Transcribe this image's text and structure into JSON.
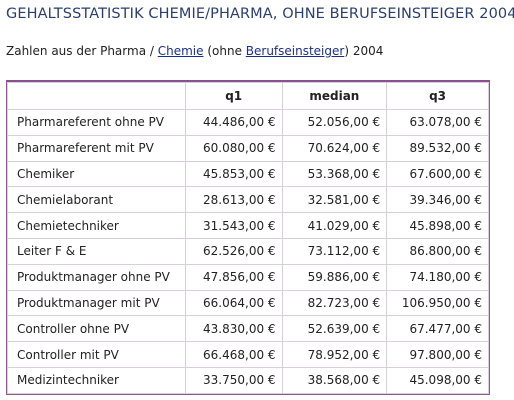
{
  "heading": "GEHALTSSTATISTIK CHEMIE/PHARMA, OHNE BERUFSEINSTEIGER 2004:",
  "subtitle": {
    "prefix": "Zahlen aus der Pharma / ",
    "link1": "Chemie",
    "middle": " (ohne ",
    "link2": "Berufseinsteiger",
    "suffix": ") 2004"
  },
  "table": {
    "headers": [
      "",
      "q1",
      "median",
      "q3"
    ],
    "rows": [
      [
        "Pharmareferent ohne PV",
        "44.486,00 €",
        "52.056,00 €",
        "63.078,00 €"
      ],
      [
        "Pharmareferent mit PV",
        "60.080,00 €",
        "70.624,00 €",
        "89.532,00 €"
      ],
      [
        "Chemiker",
        "45.853,00 €",
        "53.368,00 €",
        "67.600,00 €"
      ],
      [
        "Chemielaborant",
        "28.613,00 €",
        "32.581,00 €",
        "39.346,00 €"
      ],
      [
        "Chemietechniker",
        "31.543,00 €",
        "41.029,00 €",
        "45.898,00 €"
      ],
      [
        "Leiter F & E",
        "62.526,00 €",
        "73.112,00 €",
        "86.800,00 €"
      ],
      [
        "Produktmanager ohne PV",
        "47.856,00 €",
        "59.886,00 €",
        "74.180,00 €"
      ],
      [
        "Produktmanager mit PV",
        "66.064,00 €",
        "82.723,00 €",
        "106.950,00 €"
      ],
      [
        "Controller ohne PV",
        "43.830,00 €",
        "52.639,00 €",
        "67.477,00 €"
      ],
      [
        "Controller mit PV",
        "66.468,00 €",
        "78.952,00 €",
        "97.800,00 €"
      ],
      [
        "Medizintechniker",
        "33.750,00 €",
        "38.568,00 €",
        "45.098,00 €"
      ]
    ]
  }
}
